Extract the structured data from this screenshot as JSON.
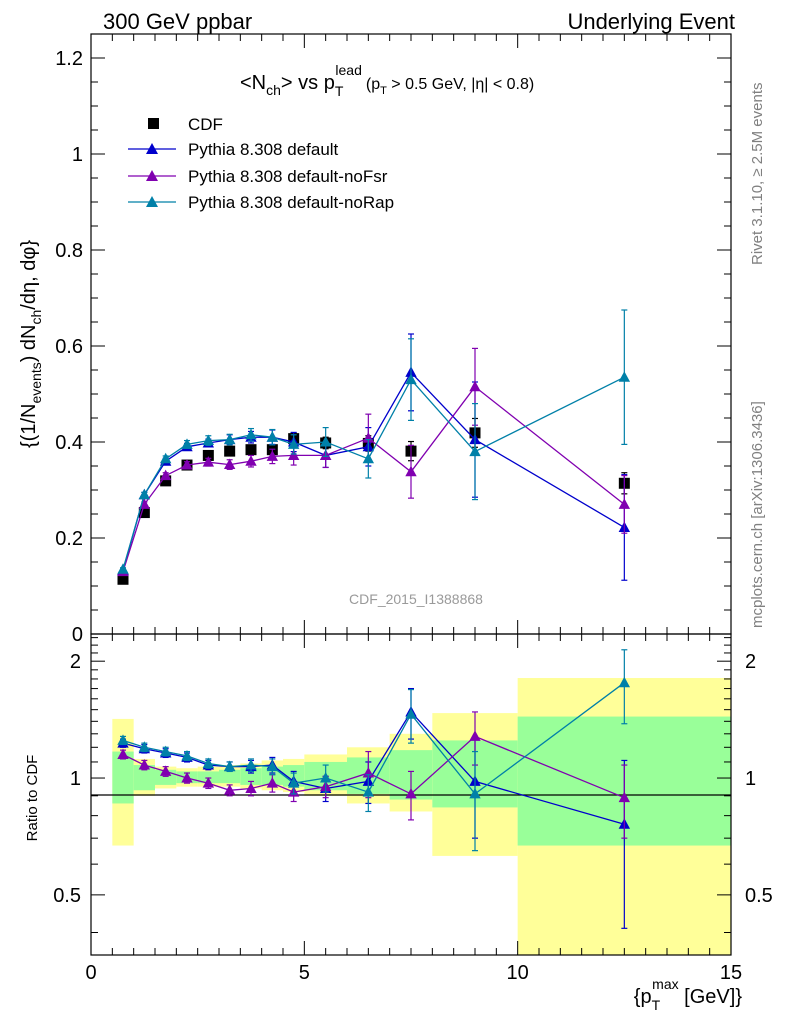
{
  "header": {
    "left": "300 GeV ppbar",
    "right": "Underlying Event"
  },
  "side_labels": {
    "rivet": "Rivet 3.1.10, ≥ 2.5M events",
    "mcplots": "mcplots.cern.ch [arXiv:1306.3436]"
  },
  "watermark": "CDF_2015_I1388868",
  "colors": {
    "cdf": "#000000",
    "default": "#0000cc",
    "noFsr": "#8000b0",
    "noRap": "#0080a8",
    "band_outer": "#ffff99",
    "band_inner": "#99ff99"
  },
  "chart_data": [
    {
      "type": "scatter",
      "panel": "main",
      "title": {
        "lhs": "<N",
        "lhs_sub": "ch",
        "mid": "> vs p",
        "mid_sub": "T",
        "mid_sup": "lead",
        "cut": "(p",
        "cut_sub": "T",
        "cut_rest": " > 0.5 GeV, |η| < 0.8)"
      },
      "ylabel": {
        "a": "{(1/N",
        "a_sub": "events",
        "b": ") dN",
        "b_sub": "ch",
        "c": "/dη, dφ}"
      },
      "xlim": [
        0,
        15
      ],
      "ylim": [
        0,
        1.25
      ],
      "y_ticks": [
        "0",
        "0.2",
        "0.4",
        "0.6",
        "0.8",
        "1",
        "1.2"
      ],
      "legend_position": "top-left",
      "series": [
        {
          "name": "CDF",
          "marker": "square",
          "color_key": "cdf",
          "x": [
            0.75,
            1.25,
            1.75,
            2.25,
            2.75,
            3.25,
            3.75,
            4.25,
            4.75,
            5.5,
            6.5,
            7.5,
            9.0,
            12.5
          ],
          "y": [
            0.114,
            0.253,
            0.319,
            0.352,
            0.372,
            0.381,
            0.384,
            0.384,
            0.407,
            0.398,
            0.397,
            0.381,
            0.419,
            0.314
          ],
          "err": [
            0.004,
            0.006,
            0.007,
            0.008,
            0.008,
            0.009,
            0.009,
            0.01,
            0.012,
            0.012,
            0.016,
            0.02,
            0.03,
            0.022
          ]
        },
        {
          "name": "Pythia 8.308 default",
          "marker": "triangle",
          "color_key": "default",
          "x": [
            0.75,
            1.25,
            1.75,
            2.25,
            2.75,
            3.25,
            3.75,
            4.25,
            4.75,
            5.5,
            6.5,
            7.5,
            9.0,
            12.5
          ],
          "y": [
            0.132,
            0.29,
            0.36,
            0.39,
            0.398,
            0.405,
            0.41,
            0.41,
            0.4,
            0.372,
            0.39,
            0.545,
            0.405,
            0.222
          ],
          "err": [
            0.003,
            0.005,
            0.006,
            0.007,
            0.008,
            0.01,
            0.012,
            0.015,
            0.02,
            0.025,
            0.04,
            0.08,
            0.12,
            0.11
          ]
        },
        {
          "name": "Pythia 8.308 default-noFsr",
          "marker": "triangle",
          "color_key": "noFsr",
          "x": [
            0.75,
            1.25,
            1.75,
            2.25,
            2.75,
            3.25,
            3.75,
            4.25,
            4.75,
            5.5,
            6.5,
            7.5,
            9.0,
            12.5
          ],
          "y": [
            0.13,
            0.27,
            0.33,
            0.352,
            0.358,
            0.353,
            0.36,
            0.37,
            0.372,
            0.372,
            0.408,
            0.338,
            0.515,
            0.27
          ],
          "err": [
            0.003,
            0.005,
            0.006,
            0.007,
            0.008,
            0.01,
            0.012,
            0.015,
            0.02,
            0.025,
            0.05,
            0.055,
            0.08,
            0.06
          ]
        },
        {
          "name": "Pythia 8.308 default-noRap",
          "marker": "triangle",
          "color_key": "noRap",
          "x": [
            0.75,
            1.25,
            1.75,
            2.25,
            2.75,
            3.25,
            3.75,
            4.25,
            4.75,
            5.5,
            6.5,
            7.5,
            9.0,
            12.5
          ],
          "y": [
            0.135,
            0.29,
            0.365,
            0.395,
            0.403,
            0.405,
            0.415,
            0.41,
            0.395,
            0.4,
            0.365,
            0.53,
            0.38,
            0.535
          ],
          "err": [
            0.003,
            0.005,
            0.006,
            0.008,
            0.01,
            0.011,
            0.013,
            0.016,
            0.02,
            0.03,
            0.04,
            0.085,
            0.1,
            0.14
          ]
        }
      ]
    },
    {
      "type": "scatter",
      "panel": "ratio",
      "ylabel": "Ratio to CDF",
      "xlabel": {
        "a": "{p",
        "a_sub": "T",
        "a_sup": "max",
        "b": " [GeV]}"
      },
      "xlim": [
        0,
        15
      ],
      "ylim": [
        0.35,
        2.35
      ],
      "y_scale": "log",
      "x_ticks": [
        "0",
        "5",
        "10",
        "15"
      ],
      "y_ticks": [
        "0.5",
        "1",
        "2"
      ],
      "reference_line": 1,
      "bands": {
        "edges": [
          0.5,
          1.0,
          1.5,
          2.0,
          2.5,
          3.0,
          3.5,
          4.0,
          4.5,
          5.0,
          6.0,
          7.0,
          8.0,
          10.0,
          15.0
        ],
        "outer_lo": [
          0.67,
          0.9,
          0.94,
          0.95,
          0.95,
          0.95,
          0.94,
          0.93,
          0.92,
          0.9,
          0.86,
          0.82,
          0.63,
          0.33
        ],
        "outer_hi": [
          1.42,
          1.12,
          1.07,
          1.06,
          1.07,
          1.08,
          1.09,
          1.11,
          1.12,
          1.15,
          1.2,
          1.3,
          1.47,
          1.81
        ],
        "inner_lo": [
          0.86,
          0.93,
          0.96,
          0.97,
          0.97,
          0.97,
          0.96,
          0.96,
          0.95,
          0.93,
          0.91,
          0.88,
          0.84,
          0.67
        ],
        "inner_hi": [
          1.17,
          1.08,
          1.05,
          1.04,
          1.04,
          1.05,
          1.06,
          1.07,
          1.08,
          1.1,
          1.13,
          1.18,
          1.25,
          1.44
        ]
      },
      "series": [
        {
          "name": "Pythia 8.308 default",
          "color_key": "default",
          "x": [
            0.75,
            1.25,
            1.75,
            2.25,
            2.75,
            3.25,
            3.75,
            4.25,
            4.75,
            5.5,
            6.5,
            7.5,
            9.0,
            12.5
          ],
          "y": [
            1.23,
            1.19,
            1.16,
            1.13,
            1.08,
            1.07,
            1.07,
            1.08,
            0.98,
            0.94,
            0.98,
            1.48,
            0.98,
            0.76
          ],
          "err": [
            0.03,
            0.03,
            0.03,
            0.03,
            0.03,
            0.03,
            0.04,
            0.05,
            0.06,
            0.07,
            0.12,
            0.22,
            0.28,
            0.35
          ]
        },
        {
          "name": "Pythia 8.308 default-noFsr",
          "color_key": "noFsr",
          "x": [
            0.75,
            1.25,
            1.75,
            2.25,
            2.75,
            3.25,
            3.75,
            4.25,
            4.75,
            5.5,
            6.5,
            7.5,
            9.0,
            12.5
          ],
          "y": [
            1.15,
            1.08,
            1.04,
            1.0,
            0.97,
            0.93,
            0.94,
            0.97,
            0.92,
            0.95,
            1.03,
            0.91,
            1.28,
            0.89
          ],
          "err": [
            0.03,
            0.03,
            0.03,
            0.03,
            0.03,
            0.03,
            0.04,
            0.05,
            0.05,
            0.06,
            0.14,
            0.13,
            0.2,
            0.19
          ]
        },
        {
          "name": "Pythia 8.308 default-noRap",
          "color_key": "noRap",
          "x": [
            0.75,
            1.25,
            1.75,
            2.25,
            2.75,
            3.25,
            3.75,
            4.25,
            4.75,
            5.5,
            6.5,
            7.5,
            9.0,
            12.5
          ],
          "y": [
            1.25,
            1.2,
            1.17,
            1.14,
            1.09,
            1.07,
            1.08,
            1.07,
            0.97,
            1.0,
            0.92,
            1.46,
            0.91,
            1.76
          ],
          "err": [
            0.03,
            0.03,
            0.03,
            0.03,
            0.03,
            0.03,
            0.04,
            0.05,
            0.06,
            0.08,
            0.1,
            0.23,
            0.26,
            0.38
          ]
        }
      ]
    }
  ]
}
